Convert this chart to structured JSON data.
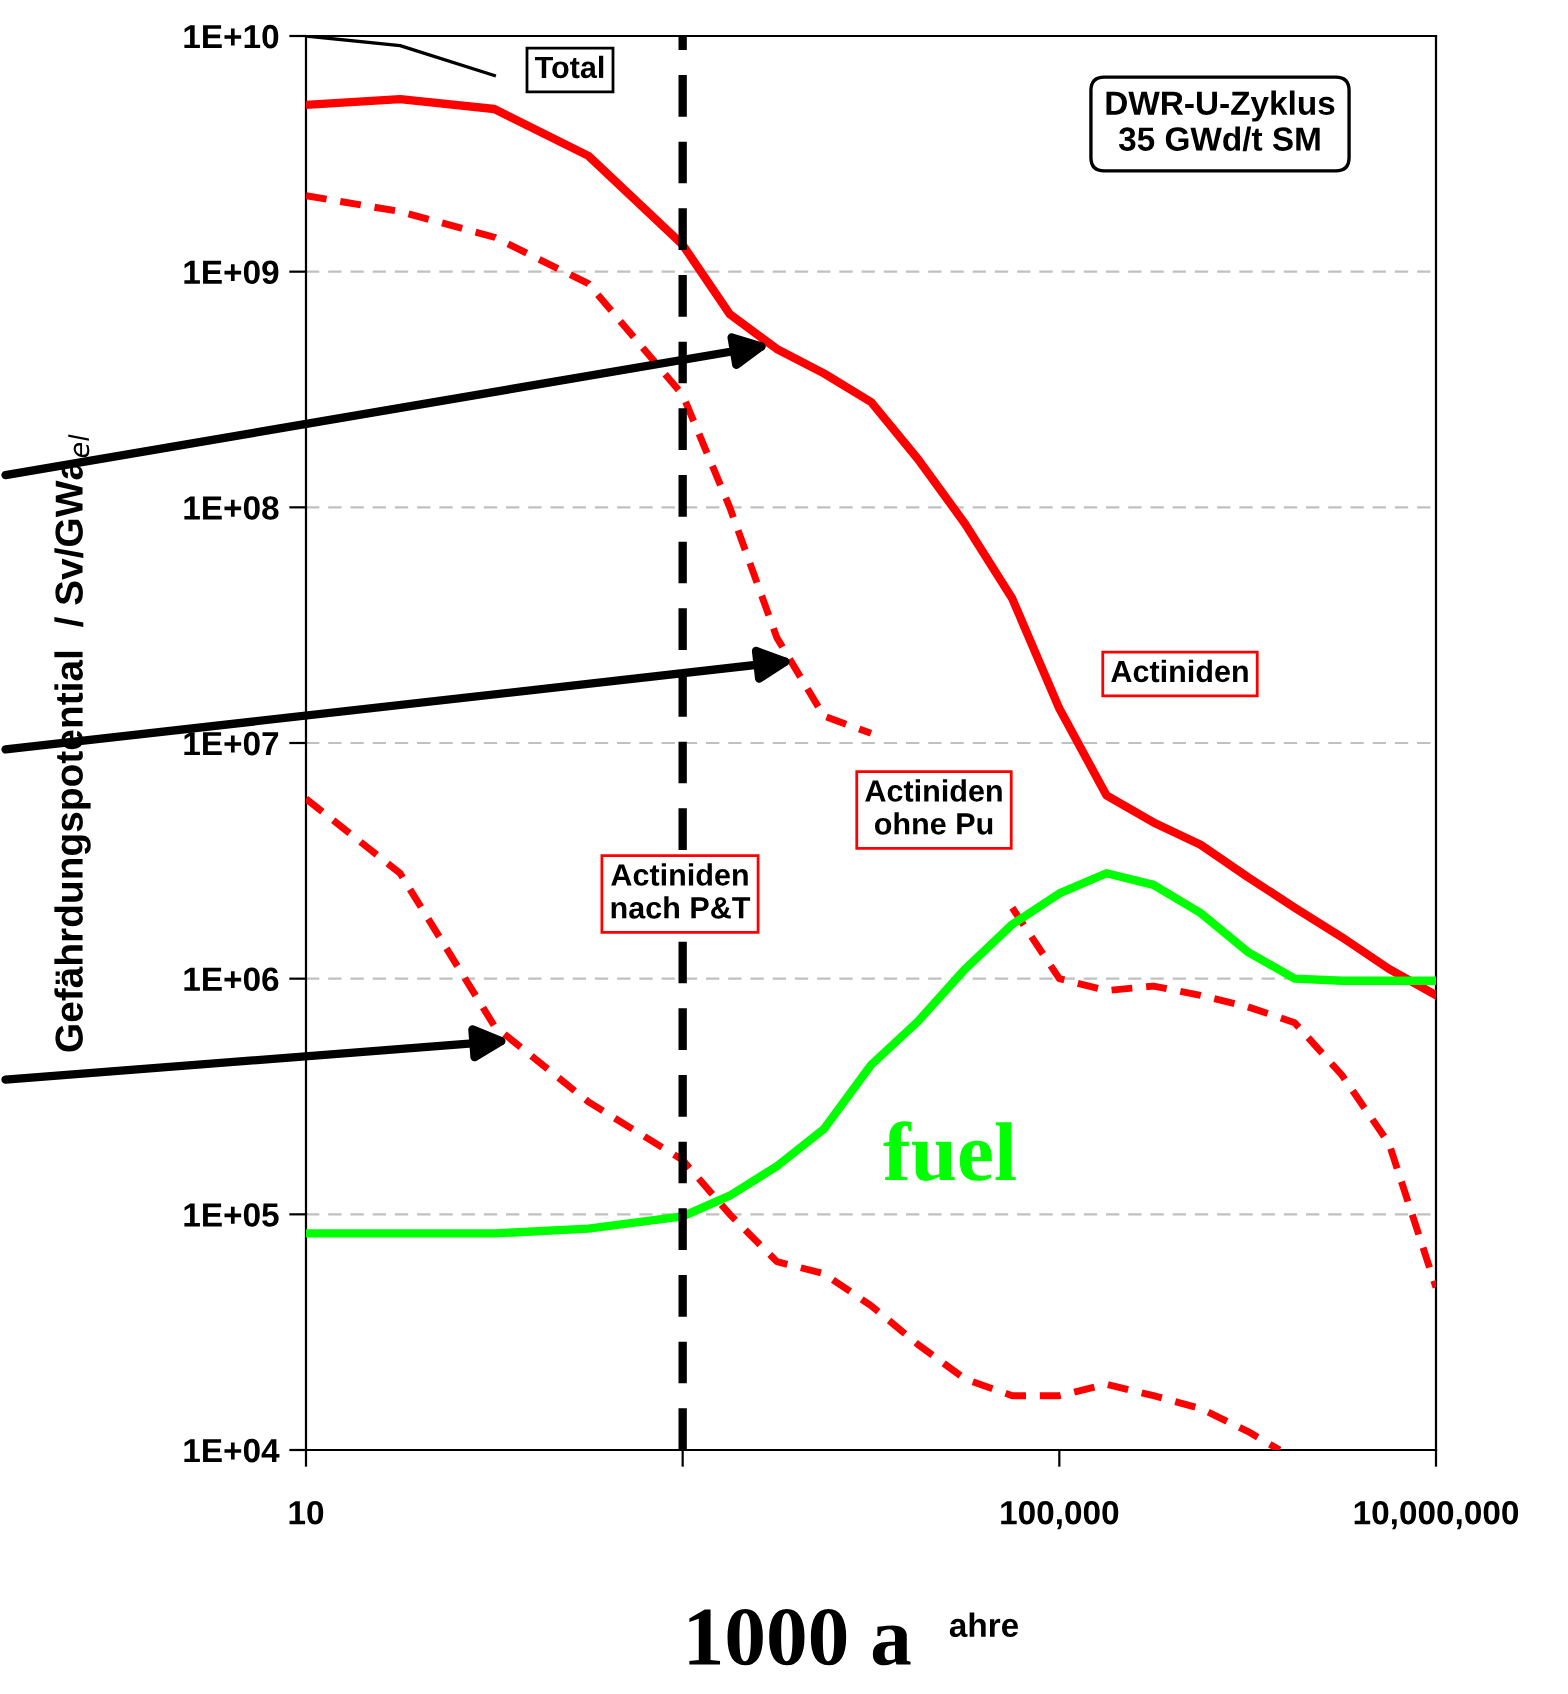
{
  "chart_data": {
    "type": "line",
    "xlabel": "ahre",
    "ylabel": "Gefährdungspotential  / Sv/GWa$_{el}$",
    "log": "xy",
    "xlim": [
      10,
      10000000
    ],
    "ylim": [
      10000,
      10000000000
    ],
    "xticks": [
      10,
      {
        "value": 1000,
        "label": null
      },
      {
        "value": 100000,
        "label": "100,000"
      },
      {
        "value": 10000000,
        "label": "10,000,000"
      }
    ],
    "yticks": [
      {
        "value": 10000,
        "label": "1E+04"
      },
      {
        "value": 100000,
        "label": "1E+05"
      },
      {
        "value": 1000000,
        "label": "1E+06"
      },
      {
        "value": 10000000,
        "label": "1E+07"
      },
      {
        "value": 100000000,
        "label": "1E+08"
      },
      {
        "value": 1000000000,
        "label": "1E+09"
      },
      {
        "value": 10000000000,
        "label": "1E+10"
      }
    ],
    "grid": "y",
    "marker": "none",
    "annotations": [
      "DWR-U-Zyklus\n35 GWd/t SM"
    ],
    "ref_lines": [
      {
        "axis": "x",
        "value": 1000,
        "label": "1000 a",
        "color": "#000000",
        "line_style": "dashed"
      }
    ],
    "x": [
      10,
      31.6,
      100,
      316,
      1000,
      1778,
      3162,
      5623,
      10000,
      17783,
      31623,
      56234,
      100000,
      177828,
      316228,
      562341,
      1000000,
      1778279,
      3162278,
      5623413,
      10000000
    ],
    "series": [
      {
        "name": "Total",
        "color": "#000000",
        "line_style": "solid",
        "values": [
          10000000000.0,
          9100000000.0,
          6800000000.0,
          null,
          null,
          null,
          null,
          null,
          null,
          null,
          null,
          null,
          null,
          null,
          null,
          null,
          null,
          null,
          null,
          null,
          null
        ]
      },
      {
        "name": "Actiniden",
        "color": "#ff0000",
        "line_style": "solid",
        "values": [
          5100000000.0,
          5400000000.0,
          4900000000.0,
          3100000000.0,
          1300000000.0,
          660000000.0,
          470000000.0,
          370000000.0,
          280000000.0,
          160000000.0,
          85000000.0,
          41000000.0,
          14000000.0,
          6000000.0,
          4600000.0,
          3700000.0,
          2700000.0,
          2000000.0,
          1500000.0,
          1100000.0,
          850000.0
        ]
      },
      {
        "name": "Actiniden\nohne Pu",
        "color": "#ff0000",
        "line_style": "dashed",
        "values": [
          2100000000.0,
          1800000000.0,
          1400000000.0,
          890000000.0,
          300000000.0,
          100000000.0,
          28000000.0,
          13000000.0,
          11000000.0,
          null,
          null,
          2000000.0,
          1000000.0,
          890000.0,
          930000.0,
          850000.0,
          760000.0,
          650000.0,
          390000.0,
          200000.0,
          49000.0
        ]
      },
      {
        "name": "Actiniden\nnach P&T",
        "color": "#ff0000",
        "line_style": "dashed",
        "x": [
          10,
          31.6,
          100,
          316,
          1000,
          1778,
          3162,
          5623,
          10000,
          17783,
          31623,
          56234,
          100000,
          177828,
          316228,
          562341,
          1000000,
          1479108
        ],
        "values": [
          5800000.0,
          2800000.0,
          630000.0,
          300000.0,
          170000.0,
          100000.0,
          63000.0,
          56000.0,
          41000.0,
          28000.0,
          20000.0,
          17000.0,
          17000.0,
          19000.0,
          17000.0,
          15000.0,
          12000.0,
          10000.0
        ]
      },
      {
        "name": "fuel",
        "color": "#00ff00",
        "line_style": "solid",
        "values": [
          83000.0,
          83000.0,
          83000.0,
          87000.0,
          98000.0,
          120000.0,
          160000.0,
          230000.0,
          430000.0,
          660000.0,
          1100000.0,
          1700000.0,
          2300000.0,
          2800000.0,
          2500000.0,
          1900000.0,
          1300000.0,
          1000000.0,
          980000.0,
          980000.0,
          980000.0
        ]
      }
    ]
  }
}
